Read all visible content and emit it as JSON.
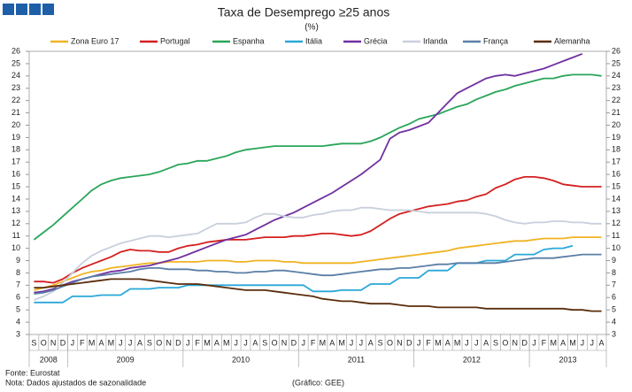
{
  "chart_data": {
    "type": "line",
    "title": "Taxa de Desemprego ≥25 anos",
    "subtitle": "(%)",
    "categories": [
      "S",
      "O",
      "N",
      "D",
      "J",
      "F",
      "M",
      "A",
      "M",
      "J",
      "J",
      "A",
      "S",
      "O",
      "N",
      "D",
      "J",
      "F",
      "M",
      "A",
      "M",
      "J",
      "J",
      "A",
      "S",
      "O",
      "N",
      "D",
      "J",
      "F",
      "M",
      "A",
      "M",
      "J",
      "J",
      "A",
      "S",
      "O",
      "N",
      "D",
      "J",
      "F",
      "M",
      "A",
      "M",
      "J",
      "J",
      "A",
      "S",
      "O",
      "N",
      "D",
      "J",
      "F",
      "M",
      "A",
      "M",
      "J",
      "J",
      "A"
    ],
    "year_labels": [
      "2008",
      "2009",
      "2010",
      "2011",
      "2012",
      "2013"
    ],
    "ylim": [
      3,
      26
    ],
    "yticks": [
      3,
      4,
      5,
      6,
      7,
      8,
      9,
      10,
      11,
      12,
      13,
      14,
      15,
      16,
      17,
      18,
      19,
      20,
      21,
      22,
      23,
      24,
      25,
      26
    ],
    "y2lim": [
      3,
      26
    ],
    "y2ticks": [
      3,
      4,
      5,
      6,
      7,
      8,
      9,
      10,
      11,
      12,
      13,
      14,
      15,
      16,
      17,
      18,
      19,
      20,
      21,
      22,
      23,
      24,
      25,
      26
    ],
    "grid": false,
    "legend": "top",
    "series": [
      {
        "name": "Zona Euro 17",
        "color": "#f0b323",
        "values": [
          6.6,
          6.8,
          7.0,
          7.3,
          7.6,
          7.9,
          8.1,
          8.2,
          8.4,
          8.5,
          8.6,
          8.7,
          8.8,
          8.8,
          8.9,
          8.9,
          8.9,
          8.9,
          9.0,
          9.0,
          9.0,
          8.9,
          8.9,
          9.0,
          9.0,
          9.0,
          8.9,
          8.9,
          8.8,
          8.8,
          8.8,
          8.8,
          8.8,
          8.8,
          8.9,
          9.0,
          9.1,
          9.2,
          9.3,
          9.4,
          9.5,
          9.6,
          9.7,
          9.8,
          10.0,
          10.1,
          10.2,
          10.3,
          10.4,
          10.5,
          10.6,
          10.6,
          10.7,
          10.8,
          10.8,
          10.8,
          10.9,
          10.9,
          10.9,
          10.9
        ]
      },
      {
        "name": "Portugal",
        "color": "#d42020",
        "values": [
          7.3,
          7.3,
          7.2,
          7.5,
          8.0,
          8.4,
          8.7,
          9.0,
          9.3,
          9.7,
          9.9,
          9.8,
          9.8,
          9.7,
          9.7,
          10.0,
          10.2,
          10.3,
          10.5,
          10.6,
          10.7,
          10.7,
          10.7,
          10.8,
          10.9,
          10.9,
          10.9,
          11.0,
          11.0,
          11.1,
          11.2,
          11.2,
          11.1,
          11.0,
          11.1,
          11.4,
          11.9,
          12.4,
          12.8,
          13.0,
          13.2,
          13.4,
          13.5,
          13.6,
          13.8,
          13.9,
          14.2,
          14.4,
          14.9,
          15.2,
          15.6,
          15.8,
          15.8,
          15.7,
          15.5,
          15.2,
          15.1,
          15.0,
          15.0,
          15.0
        ]
      },
      {
        "name": "Espanha",
        "color": "#2aa55a",
        "values": [
          10.7,
          11.3,
          11.9,
          12.6,
          13.3,
          14.0,
          14.7,
          15.2,
          15.5,
          15.7,
          15.8,
          15.9,
          16.0,
          16.2,
          16.5,
          16.8,
          16.9,
          17.1,
          17.1,
          17.3,
          17.5,
          17.8,
          18.0,
          18.1,
          18.2,
          18.3,
          18.3,
          18.3,
          18.3,
          18.3,
          18.3,
          18.4,
          18.5,
          18.5,
          18.5,
          18.7,
          19.0,
          19.4,
          19.8,
          20.1,
          20.5,
          20.7,
          20.9,
          21.2,
          21.5,
          21.7,
          22.1,
          22.4,
          22.7,
          22.9,
          23.2,
          23.4,
          23.6,
          23.8,
          23.8,
          24.0,
          24.1,
          24.1,
          24.1,
          24.0
        ]
      },
      {
        "name": "Itália",
        "color": "#2aa8d8",
        "values": [
          5.6,
          5.6,
          5.6,
          5.6,
          6.1,
          6.1,
          6.1,
          6.2,
          6.2,
          6.2,
          6.7,
          6.7,
          6.7,
          6.8,
          6.8,
          6.8,
          7.0,
          7.0,
          7.0,
          7.0,
          7.0,
          7.0,
          7.0,
          7.0,
          7.0,
          7.0,
          7.0,
          7.0,
          7.0,
          6.5,
          6.5,
          6.5,
          6.6,
          6.6,
          6.6,
          7.1,
          7.1,
          7.1,
          7.6,
          7.6,
          7.6,
          8.2,
          8.2,
          8.2,
          8.8,
          8.8,
          8.8,
          9.0,
          9.0,
          9.0,
          9.5,
          9.5,
          9.5,
          9.9,
          10.0,
          10.0,
          10.2,
          null,
          null,
          null
        ]
      },
      {
        "name": "Grécia",
        "color": "#7030a0",
        "values": [
          6.4,
          6.5,
          6.7,
          7.0,
          7.3,
          7.5,
          7.7,
          7.9,
          8.1,
          8.2,
          8.4,
          8.5,
          8.6,
          8.8,
          9.0,
          9.2,
          9.5,
          9.8,
          10.1,
          10.4,
          10.7,
          10.9,
          11.1,
          11.5,
          11.9,
          12.3,
          12.6,
          12.9,
          13.3,
          13.7,
          14.1,
          14.5,
          15.0,
          15.5,
          16.0,
          16.6,
          17.2,
          18.9,
          19.4,
          19.6,
          19.9,
          20.2,
          21.0,
          21.8,
          22.6,
          23.0,
          23.4,
          23.8,
          24.0,
          24.1,
          24.0,
          24.2,
          24.4,
          24.6,
          24.9,
          25.2,
          25.5,
          25.8,
          null,
          null
        ]
      },
      {
        "name": "Irlanda",
        "color": "#c8d0dc",
        "values": [
          5.8,
          6.1,
          6.5,
          7.2,
          8.0,
          8.8,
          9.4,
          9.8,
          10.1,
          10.4,
          10.6,
          10.8,
          11.0,
          11.0,
          10.9,
          11.0,
          11.1,
          11.2,
          11.6,
          12.0,
          12.0,
          12.0,
          12.1,
          12.5,
          12.8,
          12.8,
          12.6,
          12.5,
          12.5,
          12.7,
          12.8,
          13.0,
          13.1,
          13.1,
          13.3,
          13.3,
          13.2,
          13.1,
          13.1,
          13.1,
          13.0,
          12.9,
          12.9,
          12.9,
          12.9,
          12.9,
          12.9,
          12.8,
          12.6,
          12.3,
          12.1,
          12.0,
          12.1,
          12.1,
          12.2,
          12.2,
          12.1,
          12.1,
          12.0,
          12.0
        ]
      },
      {
        "name": "França",
        "color": "#5b7fa6",
        "values": [
          6.3,
          6.4,
          6.6,
          6.9,
          7.2,
          7.5,
          7.7,
          7.8,
          7.9,
          8.0,
          8.1,
          8.3,
          8.4,
          8.4,
          8.3,
          8.3,
          8.3,
          8.2,
          8.2,
          8.1,
          8.1,
          8.0,
          8.0,
          8.1,
          8.1,
          8.2,
          8.2,
          8.1,
          8.0,
          7.9,
          7.8,
          7.8,
          7.9,
          8.0,
          8.1,
          8.2,
          8.3,
          8.3,
          8.4,
          8.4,
          8.5,
          8.6,
          8.7,
          8.7,
          8.8,
          8.8,
          8.8,
          8.8,
          8.8,
          8.9,
          9.0,
          9.1,
          9.2,
          9.2,
          9.2,
          9.3,
          9.4,
          9.5,
          9.5,
          9.5
        ]
      },
      {
        "name": "Alemanha",
        "color": "#5a2d0c",
        "values": [
          6.8,
          6.8,
          6.9,
          7.0,
          7.1,
          7.2,
          7.3,
          7.4,
          7.5,
          7.5,
          7.5,
          7.5,
          7.4,
          7.3,
          7.2,
          7.1,
          7.1,
          7.1,
          7.0,
          6.9,
          6.8,
          6.7,
          6.6,
          6.6,
          6.6,
          6.5,
          6.4,
          6.3,
          6.2,
          6.1,
          5.9,
          5.8,
          5.7,
          5.7,
          5.6,
          5.5,
          5.5,
          5.5,
          5.4,
          5.3,
          5.3,
          5.3,
          5.2,
          5.2,
          5.2,
          5.2,
          5.2,
          5.1,
          5.1,
          5.1,
          5.1,
          5.1,
          5.1,
          5.1,
          5.1,
          5.1,
          5.0,
          5.0,
          4.9,
          4.9
        ]
      }
    ],
    "source": "Fonte: Eurostat",
    "note": "Nota: Dados ajustados de sazonalidade",
    "credit": "(Gráfico: GEE)"
  }
}
